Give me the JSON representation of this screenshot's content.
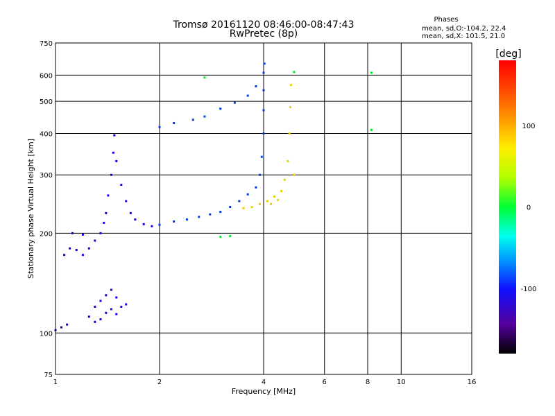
{
  "chart_data": {
    "type": "scatter",
    "title": "Tromsø 20161120 08:46:00-08:47:43",
    "subtitle": "RwPretec (8p)",
    "xlabel": "Frequency [MHz]",
    "ylabel": "Stationary phase Virtual Height [km]",
    "x_scale": "log",
    "y_scale": "log",
    "xlim": [
      1,
      16
    ],
    "ylim": [
      75,
      750
    ],
    "x_ticks": [
      1,
      2,
      4,
      6,
      8,
      10,
      16
    ],
    "y_ticks": [
      75,
      100,
      200,
      300,
      400,
      500,
      600,
      750
    ],
    "x_grid": [
      2,
      4,
      6,
      8,
      10,
      16
    ],
    "y_grid": [
      100,
      200,
      300,
      400,
      500,
      600
    ],
    "legend": {
      "title": "Phases",
      "line1": "mean, sd,O:-104.2, 22.4",
      "line2": "mean, sd,X: 101.5, 21.0",
      "placement": "top-right"
    },
    "colorbar": {
      "label": "[deg]",
      "range": [
        -180,
        180
      ],
      "ticks": [
        100,
        0,
        -100
      ]
    },
    "series": [
      {
        "color_deg": -135,
        "points": [
          [
            1.0,
            102
          ],
          [
            1.04,
            104
          ],
          [
            1.08,
            106
          ],
          [
            1.06,
            172
          ],
          [
            1.1,
            180
          ],
          [
            1.15,
            178
          ],
          [
            1.2,
            172
          ],
          [
            1.25,
            180
          ],
          [
            1.3,
            190
          ],
          [
            1.35,
            200
          ],
          [
            1.38,
            215
          ],
          [
            1.4,
            230
          ],
          [
            1.42,
            260
          ],
          [
            1.45,
            300
          ],
          [
            1.47,
            350
          ],
          [
            1.48,
            395
          ],
          [
            1.5,
            330
          ],
          [
            1.55,
            280
          ],
          [
            1.6,
            250
          ],
          [
            1.65,
            230
          ],
          [
            1.7,
            220
          ],
          [
            1.8,
            213
          ],
          [
            1.9,
            210
          ],
          [
            1.3,
            120
          ],
          [
            1.35,
            125
          ],
          [
            1.4,
            130
          ],
          [
            1.45,
            135
          ],
          [
            1.5,
            128
          ],
          [
            1.55,
            120
          ],
          [
            1.6,
            122
          ],
          [
            1.25,
            112
          ],
          [
            1.3,
            108
          ],
          [
            1.35,
            110
          ],
          [
            1.4,
            115
          ],
          [
            1.45,
            118
          ],
          [
            1.5,
            114
          ],
          [
            1.12,
            200
          ],
          [
            1.2,
            198
          ]
        ]
      },
      {
        "color_deg": -108,
        "points": [
          [
            2.0,
            418
          ],
          [
            2.2,
            430
          ],
          [
            2.5,
            440
          ],
          [
            2.7,
            450
          ],
          [
            3.0,
            475
          ],
          [
            3.3,
            495
          ],
          [
            3.6,
            520
          ],
          [
            3.8,
            555
          ],
          [
            2.0,
            212
          ],
          [
            2.2,
            217
          ],
          [
            2.4,
            220
          ],
          [
            2.6,
            224
          ],
          [
            2.8,
            228
          ],
          [
            3.0,
            232
          ],
          [
            3.2,
            240
          ],
          [
            3.4,
            250
          ],
          [
            3.6,
            262
          ],
          [
            3.8,
            275
          ],
          [
            3.9,
            300
          ],
          [
            3.95,
            340
          ],
          [
            4.0,
            400
          ],
          [
            4.0,
            470
          ],
          [
            4.0,
            540
          ],
          [
            4.0,
            610
          ],
          [
            4.02,
            650
          ]
        ]
      },
      {
        "color_deg": 110,
        "points": [
          [
            3.5,
            238
          ],
          [
            3.7,
            240
          ],
          [
            3.9,
            245
          ],
          [
            4.1,
            250
          ],
          [
            4.3,
            258
          ],
          [
            4.5,
            268
          ],
          [
            4.6,
            290
          ],
          [
            4.7,
            330
          ],
          [
            4.75,
            400
          ],
          [
            4.78,
            480
          ],
          [
            4.8,
            560
          ],
          [
            4.2,
            245
          ],
          [
            4.4,
            252
          ],
          [
            4.9,
            300
          ]
        ]
      },
      {
        "color_deg": 10,
        "points": [
          [
            2.7,
            590
          ],
          [
            8.2,
            610
          ],
          [
            4.9,
            613
          ],
          [
            8.2,
            410
          ],
          [
            3.0,
            195
          ],
          [
            3.2,
            196
          ]
        ]
      }
    ]
  }
}
